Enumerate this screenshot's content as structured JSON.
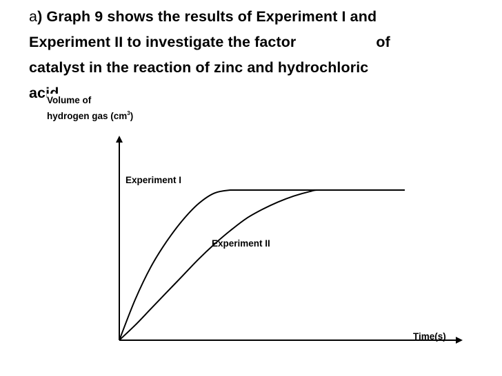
{
  "question": {
    "prefix": "a",
    "line1": ") Graph 9 shows the results of Experiment I and",
    "line2a": "Experiment II to investigate the factor",
    "line2b": "of",
    "line3": "catalyst in the reaction of zinc and hydrochloric",
    "line4": "acid"
  },
  "chart_data": {
    "type": "line",
    "title": "",
    "ylabel_line1": "Volume of",
    "ylabel_line2": "hydrogen gas (cm",
    "ylabel_sup": "3",
    "ylabel_end": ")",
    "xlabel": "Time(s)",
    "grid": false,
    "axis_ticks": false,
    "series": [
      {
        "name": "Experiment I",
        "x": [
          0,
          1,
          2,
          3,
          4,
          5,
          6,
          7,
          7.5,
          8,
          10,
          14,
          18
        ],
        "y": [
          0,
          0.27,
          0.49,
          0.66,
          0.8,
          0.91,
          0.98,
          1.0,
          1.0,
          1.0,
          1.0,
          1.0,
          1.0
        ]
      },
      {
        "name": "Experiment II",
        "x": [
          0,
          1,
          2,
          3,
          4,
          5,
          6,
          7,
          8,
          9,
          10,
          11,
          12,
          12.5,
          14,
          18
        ],
        "y": [
          0,
          0.1,
          0.21,
          0.32,
          0.43,
          0.54,
          0.64,
          0.73,
          0.81,
          0.87,
          0.92,
          0.96,
          0.99,
          1.0,
          1.0,
          1.0
        ]
      }
    ],
    "xlim": [
      0,
      20
    ],
    "ylim": [
      0,
      1.5
    ]
  }
}
